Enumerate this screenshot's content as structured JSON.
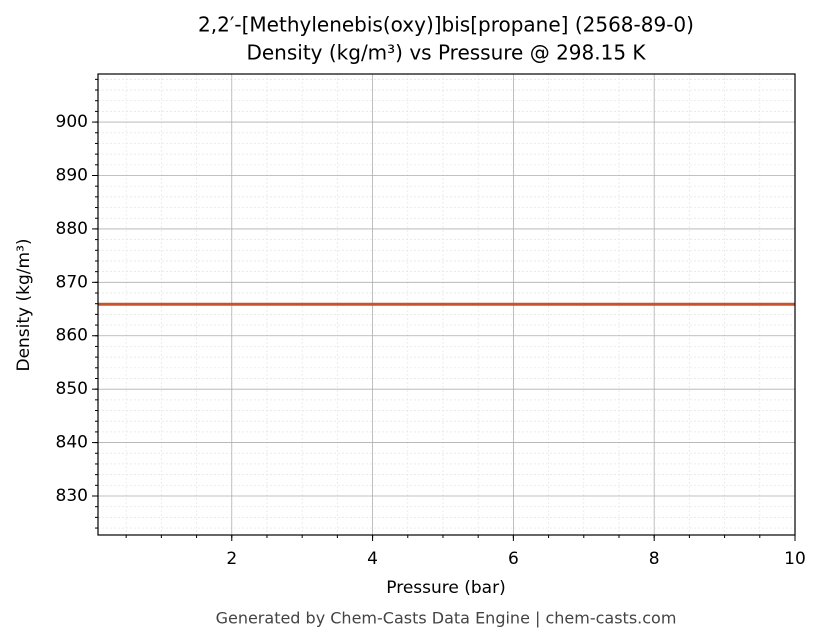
{
  "chart_data": {
    "type": "line",
    "title": "2,2′-[Methylenebis(oxy)]bis[propane] (2568-89-0)",
    "subtitle": "Density (kg/m³) vs Pressure @ 298.15 K",
    "x_label": "Pressure (bar)",
    "y_label": "Density (kg/m³)",
    "footer": "Generated by Chem-Casts Data Engine | chem-casts.com",
    "x": [
      0.1,
      10
    ],
    "series": [
      {
        "name": "Density",
        "color": "#c8532a",
        "values": [
          865.9,
          865.9
        ]
      }
    ],
    "xlim": [
      0.1,
      10
    ],
    "xticks": [
      2,
      4,
      6,
      8,
      10
    ],
    "ylim": [
      822.7,
      909
    ],
    "yticks": [
      830,
      840,
      850,
      860,
      870,
      880,
      890,
      900
    ],
    "grid": true,
    "minor_grid": true
  }
}
